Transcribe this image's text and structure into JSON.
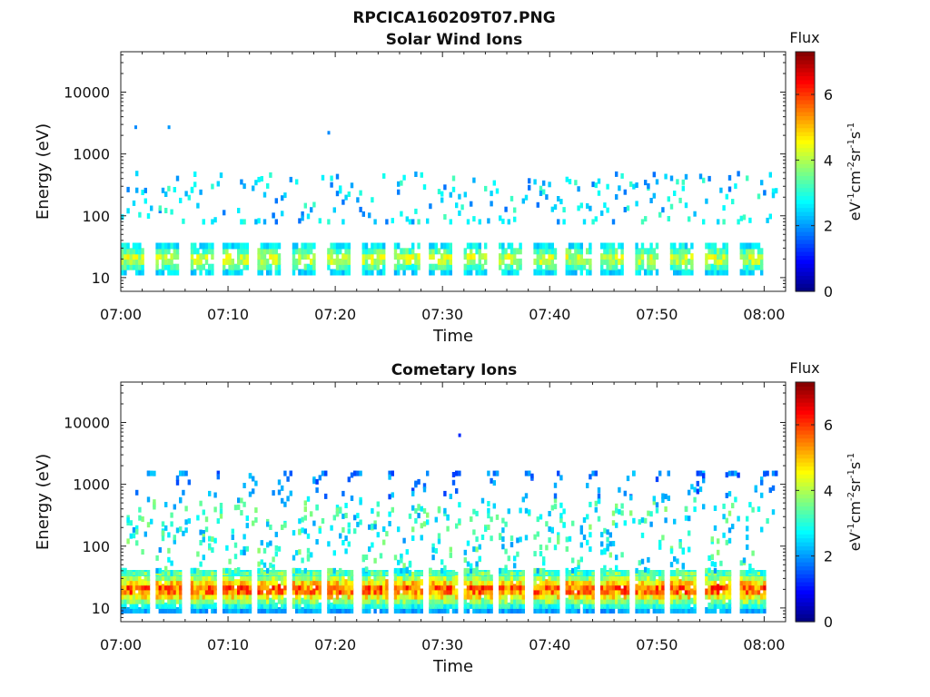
{
  "figure": {
    "title": "RPCICA160209T07.PNG"
  },
  "colors": {
    "colormap": [
      "#00007f",
      "#0000ff",
      "#007fff",
      "#00ffff",
      "#7fff7f",
      "#ffff00",
      "#ff7f00",
      "#ff0000",
      "#7f0000"
    ]
  },
  "chart_data": [
    {
      "type": "heatmap",
      "title": "Solar Wind Ions",
      "xlabel": "Time",
      "ylabel": "Energy (eV)",
      "y_scale": "log",
      "xlim": [
        "07:00",
        "08:02"
      ],
      "ylim": [
        6,
        45000
      ],
      "x_ticks": [
        "07:00",
        "07:10",
        "07:20",
        "07:30",
        "07:40",
        "07:50",
        "08:00"
      ],
      "y_ticks": [
        10,
        100,
        1000,
        10000
      ],
      "y_tick_labels": [
        "10",
        "100",
        "1000",
        "10000"
      ],
      "colorbar": {
        "label": "Flux",
        "units_base": "eV",
        "units_segments": [
          {
            "base": "eV",
            "exp": "-1"
          },
          {
            "base": "cm",
            "exp": "-2"
          },
          {
            "base": "sr",
            "exp": "-1"
          },
          {
            "base": "s",
            "exp": "-1"
          }
        ],
        "range": [
          0,
          7.3
        ],
        "ticks": [
          "0",
          "2",
          "4",
          "6"
        ]
      },
      "cycle_start_minutes": [
        0,
        3.2,
        6.4,
        9.6,
        12.8,
        16.0,
        19.2,
        22.4,
        25.6,
        28.8,
        32.0,
        35.2,
        38.4,
        41.6,
        44.8,
        48.0,
        51.2,
        54.4,
        57.6
      ],
      "low_band": {
        "energy_range_eV": [
          12,
          32
        ],
        "peak_energy_eV": 20,
        "peak_flux": 4.6
      },
      "high_band": {
        "energy_range_eV": [
          80,
          1000
        ],
        "peak_energy_eV": 170,
        "peak_flux": 3.1
      },
      "isolated_points": [
        {
          "time_minutes": 1.4,
          "energy_eV": 2700,
          "flux": 1.9
        },
        {
          "time_minutes": 4.5,
          "energy_eV": 2700,
          "flux": 2.0
        },
        {
          "time_minutes": 19.4,
          "energy_eV": 2200,
          "flux": 1.9
        }
      ]
    },
    {
      "type": "heatmap",
      "title": "Cometary Ions",
      "xlabel": "Time",
      "ylabel": "Energy (eV)",
      "y_scale": "log",
      "xlim": [
        "07:00",
        "08:02"
      ],
      "ylim": [
        6,
        45000
      ],
      "x_ticks": [
        "07:00",
        "07:10",
        "07:20",
        "07:30",
        "07:40",
        "07:50",
        "08:00"
      ],
      "y_ticks": [
        10,
        100,
        1000,
        10000
      ],
      "y_tick_labels": [
        "10",
        "100",
        "1000",
        "10000"
      ],
      "colorbar": {
        "label": "Flux",
        "units_base": "eV",
        "units_segments": [
          {
            "base": "eV",
            "exp": "-1"
          },
          {
            "base": "cm",
            "exp": "-2"
          },
          {
            "base": "sr",
            "exp": "-1"
          },
          {
            "base": "s",
            "exp": "-1"
          }
        ],
        "range": [
          0,
          7.3
        ],
        "ticks": [
          "0",
          "2",
          "4",
          "6"
        ]
      },
      "cycle_start_minutes": [
        0,
        3.2,
        6.4,
        9.6,
        12.8,
        16.0,
        19.2,
        22.4,
        25.6,
        28.8,
        32.0,
        35.2,
        38.4,
        41.6,
        44.8,
        48.0,
        51.2,
        54.4,
        57.6
      ],
      "low_band": {
        "energy_range_eV": [
          9,
          36
        ],
        "peak_energy_eV": 20,
        "peak_flux": 6.3
      },
      "high_band": {
        "energy_range_eV": [
          40,
          1500
        ],
        "peak_energy_eV": 150,
        "peak_flux": 3.6
      },
      "isolated_points": [
        {
          "time_minutes": 31.6,
          "energy_eV": 6200,
          "flux": 1.2
        }
      ]
    }
  ]
}
